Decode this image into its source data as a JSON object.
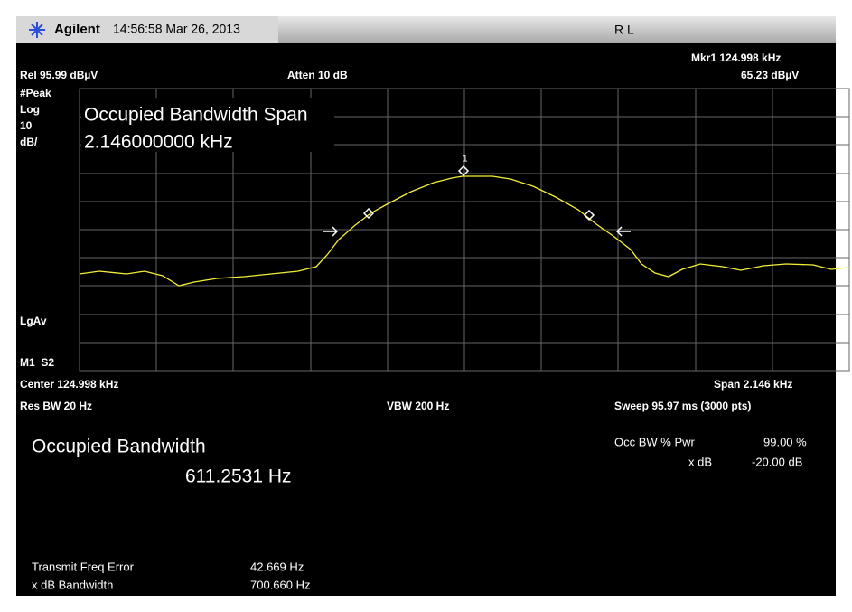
{
  "header": {
    "brand": "Agilent",
    "timestamp": "14:56:58 Mar 26, 2013",
    "mode": "R L"
  },
  "marker": {
    "label": "Mkr1 124.998 kHz",
    "amplitude": "65.23 dBµV",
    "number": "1"
  },
  "settings": {
    "ref_level": "Rel 95.99 dBµV",
    "attenuation": "Atten 10 dB",
    "left_labels": [
      "#Peak",
      "Log",
      "10",
      "dB/",
      "LgAv",
      "M1  S2"
    ],
    "center": "Center 124.998 kHz",
    "span": "Span 2.146 kHz",
    "res_bw": "Res BW 20 Hz",
    "vbw": "VBW 200 Hz",
    "sweep": "Sweep 95.97 ms (3000 pts)"
  },
  "overlay": {
    "title": "Occupied Bandwidth Span",
    "value": "2.146000000 kHz"
  },
  "results": {
    "title": "Occupied Bandwidth",
    "value": "611.2531 Hz",
    "occ_bw_label": "Occ BW % Pwr",
    "occ_bw_value": "99.00 %",
    "xdb_label": "x dB",
    "xdb_value": "-20.00 dB",
    "freq_error_label": "Transmit Freq Error",
    "freq_error_value": "42.669 Hz",
    "xdb_bw_label": "x dB Bandwidth",
    "xdb_bw_value": "700.660 Hz"
  }
}
